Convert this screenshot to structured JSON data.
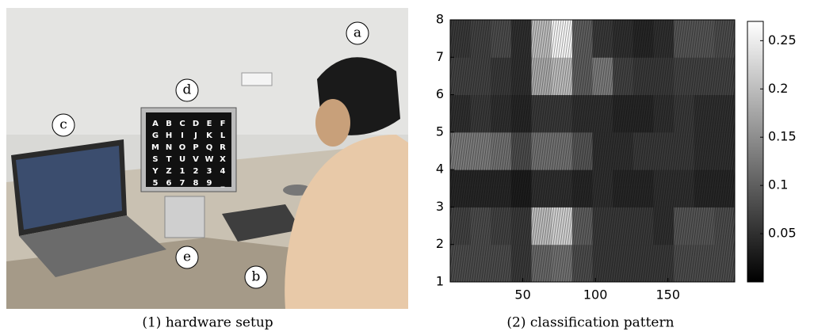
{
  "photo": {
    "labels": [
      "a",
      "b",
      "c",
      "d",
      "e"
    ],
    "screen_letters": [
      [
        "A",
        "B",
        "C",
        "D",
        "E",
        "F"
      ],
      [
        "G",
        "H",
        "I",
        "J",
        "K",
        "L"
      ],
      [
        "M",
        "N",
        "O",
        "P",
        "Q",
        "R"
      ],
      [
        "S",
        "T",
        "U",
        "V",
        "W",
        "X"
      ],
      [
        "Y",
        "Z",
        "1",
        "2",
        "3",
        "4"
      ],
      [
        "5",
        "6",
        "7",
        "8",
        "9",
        "_"
      ]
    ]
  },
  "captions": [
    "(1) hardware setup",
    "(2) classification pattern"
  ],
  "chart_data": {
    "type": "heatmap",
    "colormap": "gray",
    "x": [
      7,
      21,
      35,
      49,
      63,
      77,
      91,
      105,
      119,
      133,
      147,
      161,
      175,
      189
    ],
    "y": [
      1.5,
      2.5,
      3.5,
      4.5,
      5.5,
      6.5,
      7.5
    ],
    "z": [
      [
        0.08,
        0.08,
        0.08,
        0.06,
        0.11,
        0.12,
        0.08,
        0.06,
        0.06,
        0.06,
        0.06,
        0.08,
        0.08,
        0.08
      ],
      [
        0.07,
        0.08,
        0.07,
        0.06,
        0.2,
        0.22,
        0.1,
        0.06,
        0.06,
        0.06,
        0.05,
        0.09,
        0.09,
        0.08
      ],
      [
        0.04,
        0.04,
        0.04,
        0.03,
        0.05,
        0.05,
        0.04,
        0.05,
        0.04,
        0.04,
        0.05,
        0.05,
        0.04,
        0.04
      ],
      [
        0.13,
        0.13,
        0.12,
        0.08,
        0.12,
        0.12,
        0.09,
        0.05,
        0.05,
        0.06,
        0.06,
        0.06,
        0.05,
        0.05
      ],
      [
        0.05,
        0.06,
        0.05,
        0.04,
        0.06,
        0.06,
        0.05,
        0.05,
        0.04,
        0.04,
        0.05,
        0.06,
        0.05,
        0.05
      ],
      [
        0.07,
        0.07,
        0.06,
        0.05,
        0.18,
        0.2,
        0.1,
        0.13,
        0.07,
        0.06,
        0.06,
        0.07,
        0.07,
        0.07
      ],
      [
        0.06,
        0.07,
        0.08,
        0.05,
        0.2,
        0.26,
        0.1,
        0.06,
        0.05,
        0.04,
        0.05,
        0.09,
        0.09,
        0.08
      ]
    ],
    "xlim": [
      0,
      196
    ],
    "ylim": [
      1,
      8
    ],
    "xticks": [
      50,
      100,
      150
    ],
    "yticks": [
      1,
      2,
      3,
      4,
      5,
      6,
      7,
      8
    ],
    "zlim": [
      0,
      0.27
    ],
    "zticks": [
      0.05,
      0.1,
      0.15,
      0.2,
      0.25
    ]
  }
}
